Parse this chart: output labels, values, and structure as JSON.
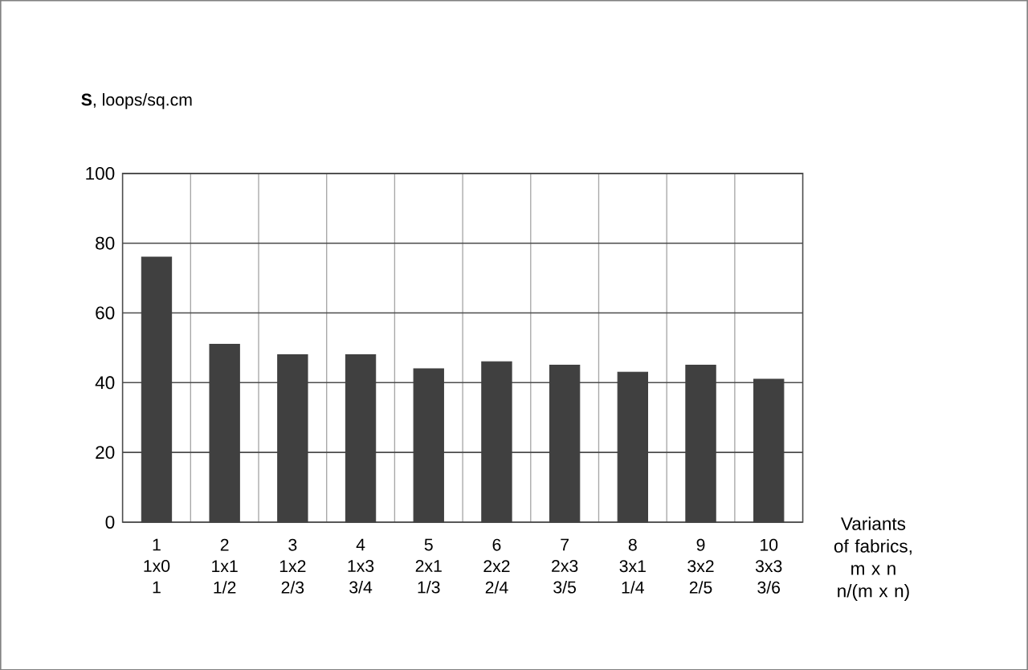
{
  "chart_data": {
    "type": "bar",
    "ylabel": "**S**, loops/sq.cm",
    "xlabel": "Variants of fabrics, m x n n/(m x n)",
    "categories": [
      "1 1x0 1",
      "2 1x1 1/2",
      "3 1x2 2/3",
      "4 1x3 3/4",
      "5 2x1 1/3",
      "6 2x2 2/4",
      "7 2x3 3/5",
      "8 3x1 1/4",
      "9 3x2 2/5",
      "10 3x3 3/6"
    ],
    "values": [
      76,
      51,
      48,
      48,
      44,
      46,
      45,
      43,
      45,
      41
    ],
    "color": "#404040",
    "ylim": [
      0,
      100
    ],
    "yticks": [
      0,
      20,
      40,
      60,
      80,
      100
    ],
    "grid": true
  }
}
